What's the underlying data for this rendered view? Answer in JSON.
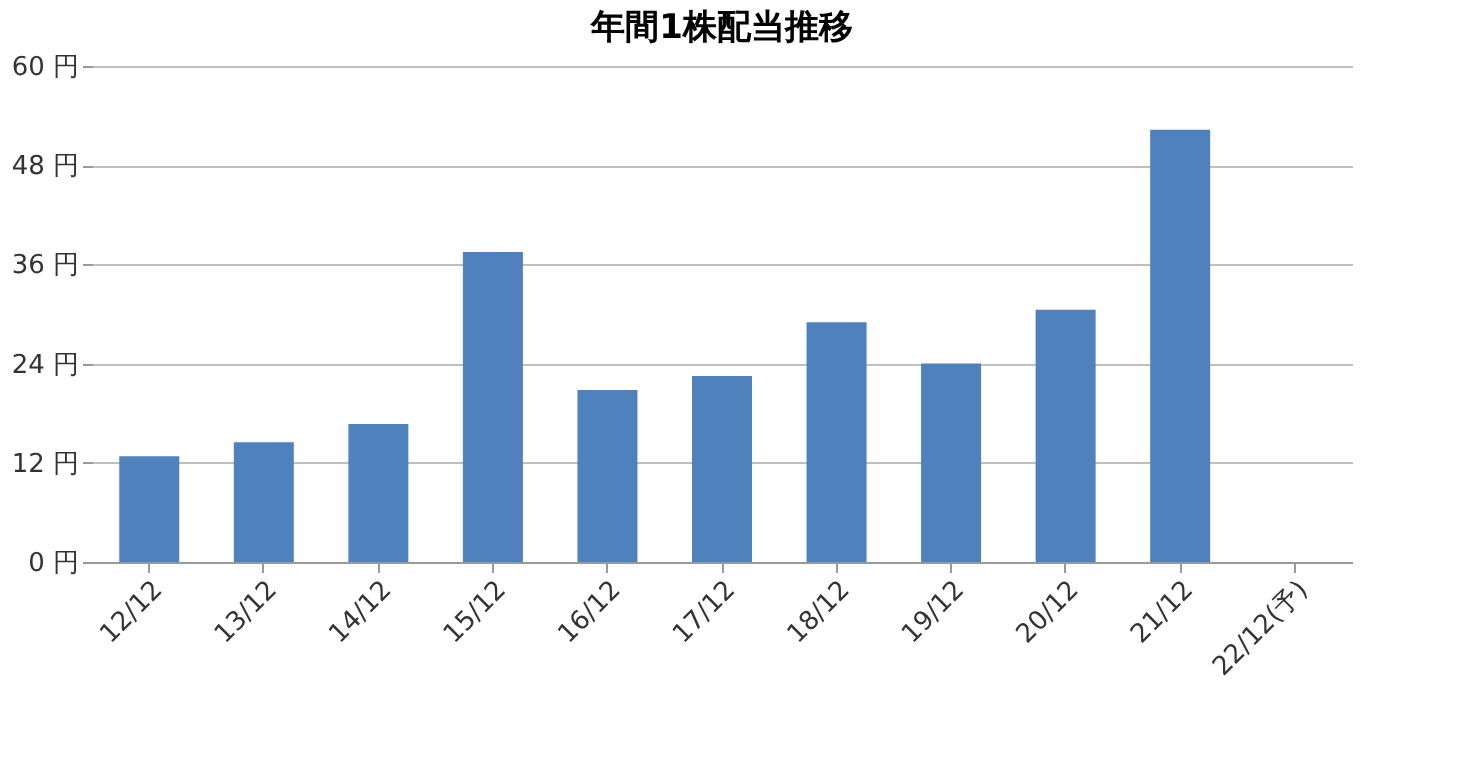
{
  "chart_data": {
    "type": "bar",
    "title": "年間1株配当推移",
    "categories": [
      "12/12",
      "13/12",
      "14/12",
      "15/12",
      "16/12",
      "17/12",
      "18/12",
      "19/12",
      "20/12",
      "21/12",
      "22/12(予)"
    ],
    "values": [
      12.8,
      14.5,
      16.7,
      37.5,
      20.8,
      22.5,
      29.0,
      24.0,
      30.5,
      52.3,
      null
    ],
    "color": "#4f81bd",
    "ylim": [
      0,
      60
    ],
    "yticks": [
      {
        "value": 0,
        "label": "0 円"
      },
      {
        "value": 12,
        "label": "12 円"
      },
      {
        "value": 24,
        "label": "24 円"
      },
      {
        "value": 36,
        "label": "36 円"
      },
      {
        "value": 48,
        "label": "48 円"
      },
      {
        "value": 60,
        "label": "60 円"
      }
    ],
    "grid": "y"
  }
}
